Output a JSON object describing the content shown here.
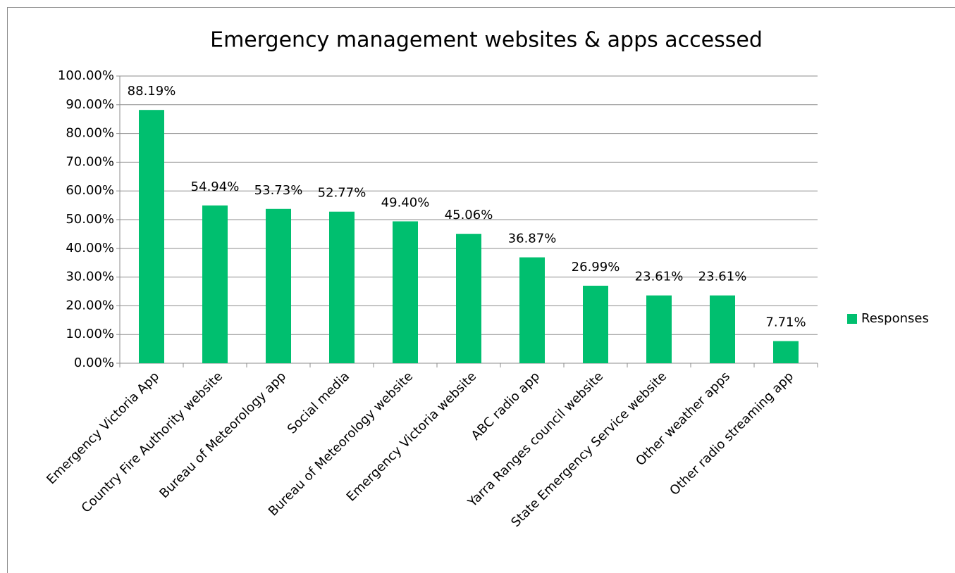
{
  "chart_data": {
    "type": "bar",
    "title": "Emergency management websites & apps accessed",
    "categories": [
      "Emergency Victoria App",
      "Country Fire Authority website",
      "Bureau of Meteorology app",
      "Social media",
      "Bureau of Meteorology website",
      "Emergency Victoria website",
      "ABC radio app",
      "Yarra Ranges council website",
      "State Emergency Service website",
      "Other weather apps",
      "Other radio streaming app"
    ],
    "series": [
      {
        "name": "Responses",
        "color": "#00bf6f",
        "values": [
          88.19,
          54.94,
          53.73,
          52.77,
          49.4,
          45.06,
          36.87,
          26.99,
          23.61,
          23.61,
          7.71
        ],
        "value_labels": [
          "88.19%",
          "54.94%",
          "53.73%",
          "52.77%",
          "49.40%",
          "45.06%",
          "36.87%",
          "26.99%",
          "23.61%",
          "23.61%",
          "7.71%"
        ]
      }
    ],
    "ylim": [
      0,
      100
    ],
    "yticks": [
      {
        "value": 0,
        "label": "0.00%"
      },
      {
        "value": 10,
        "label": "10.00%"
      },
      {
        "value": 20,
        "label": "20.00%"
      },
      {
        "value": 30,
        "label": "30.00%"
      },
      {
        "value": 40,
        "label": "40.00%"
      },
      {
        "value": 50,
        "label": "50.00%"
      },
      {
        "value": 60,
        "label": "60.00%"
      },
      {
        "value": 70,
        "label": "70.00%"
      },
      {
        "value": 80,
        "label": "80.00%"
      },
      {
        "value": 90,
        "label": "90.00%"
      },
      {
        "value": 100,
        "label": "100.00%"
      }
    ],
    "grid": true,
    "legend": "right"
  }
}
